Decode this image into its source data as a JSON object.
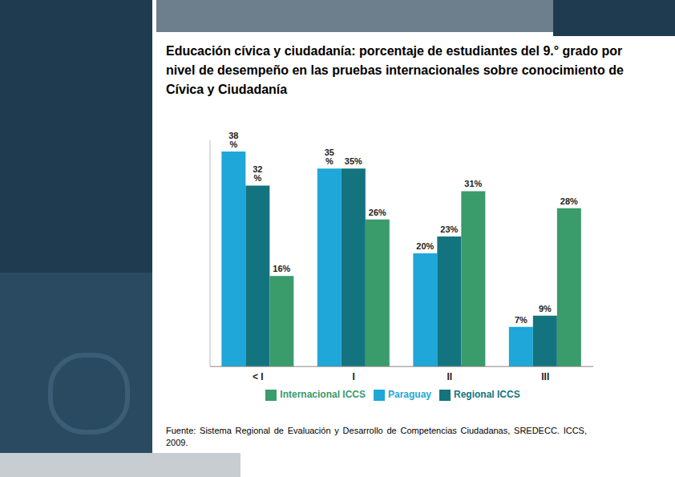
{
  "chart_data": {
    "type": "bar",
    "title": "Educación cívica y ciudadanía: porcentaje de estudiantes del 9.° grado por nivel de desempeño en las pruebas internacionales sobre conocimiento de Cívica y Ciudadanía",
    "annotations": [
      "Fuente: Sistema Regional de Evaluación y Desarrollo de Competencias Ciudadanas, SREDECC. ICCS, 2009."
    ],
    "categories": [
      "< I",
      "I",
      "II",
      "III"
    ],
    "series": [
      {
        "name": "Paraguay",
        "color": "#1ea7d8",
        "values": [
          38,
          35,
          20,
          7
        ],
        "value_labels": [
          "38 %",
          "35 %",
          "20%",
          "7%"
        ]
      },
      {
        "name": "Regional ICCS",
        "color": "#137480",
        "values": [
          32,
          35,
          23,
          9
        ],
        "value_labels": [
          "32 %",
          "35%",
          "23%",
          "9%"
        ]
      },
      {
        "name": "Internacional ICCS",
        "color": "#3a9b6b",
        "values": [
          16,
          26,
          31,
          28
        ],
        "value_labels": [
          "16%",
          "26%",
          "31%",
          "28%"
        ]
      }
    ],
    "ylim": [
      0,
      40
    ],
    "data_labels": true,
    "tick_labels": "x",
    "legend": "bottom",
    "grid": false
  }
}
